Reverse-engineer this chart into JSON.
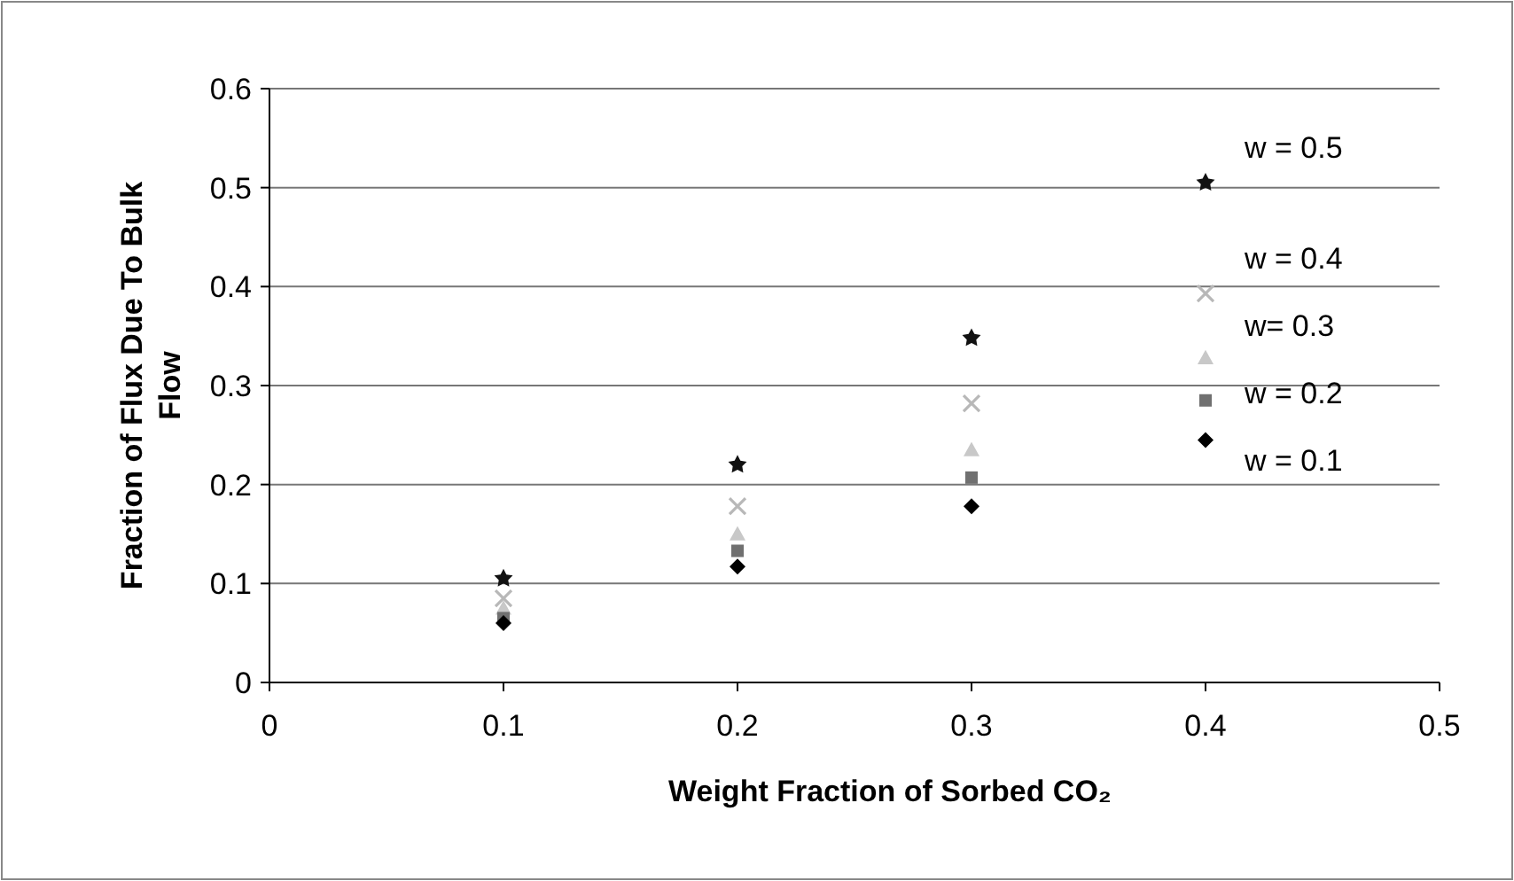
{
  "chart_data": {
    "type": "scatter",
    "xlabel": "Weight Fraction of Sorbed CO₂",
    "ylabel": "Fraction of Flux Due To Bulk Flow",
    "x": [
      0.1,
      0.2,
      0.3,
      0.4
    ],
    "xlim": [
      0,
      0.5
    ],
    "xticks": [
      0,
      0.1,
      0.2,
      0.3,
      0.4,
      0.5
    ],
    "ylim": [
      0,
      0.6
    ],
    "yticks": [
      0,
      0.1,
      0.2,
      0.3,
      0.4,
      0.5,
      0.6
    ],
    "grid": "y",
    "series": [
      {
        "name": "w = 0.5",
        "color": "#111111",
        "marker": "star",
        "values": [
          0.105,
          0.22,
          0.348,
          0.505
        ]
      },
      {
        "name": "w = 0.4",
        "color": "#b8b8b8",
        "marker": "cross",
        "values": [
          0.085,
          0.178,
          0.282,
          0.393
        ]
      },
      {
        "name": "w= 0.3",
        "color": "#c8c8c8",
        "marker": "triangle",
        "values": [
          0.075,
          0.15,
          0.235,
          0.328
        ]
      },
      {
        "name": "w = 0.2",
        "color": "#707070",
        "marker": "square",
        "values": [
          0.065,
          0.133,
          0.207,
          0.285
        ]
      },
      {
        "name": "w = 0.1",
        "color": "#000000",
        "marker": "diamond",
        "values": [
          0.06,
          0.117,
          0.178,
          0.245
        ]
      }
    ]
  }
}
